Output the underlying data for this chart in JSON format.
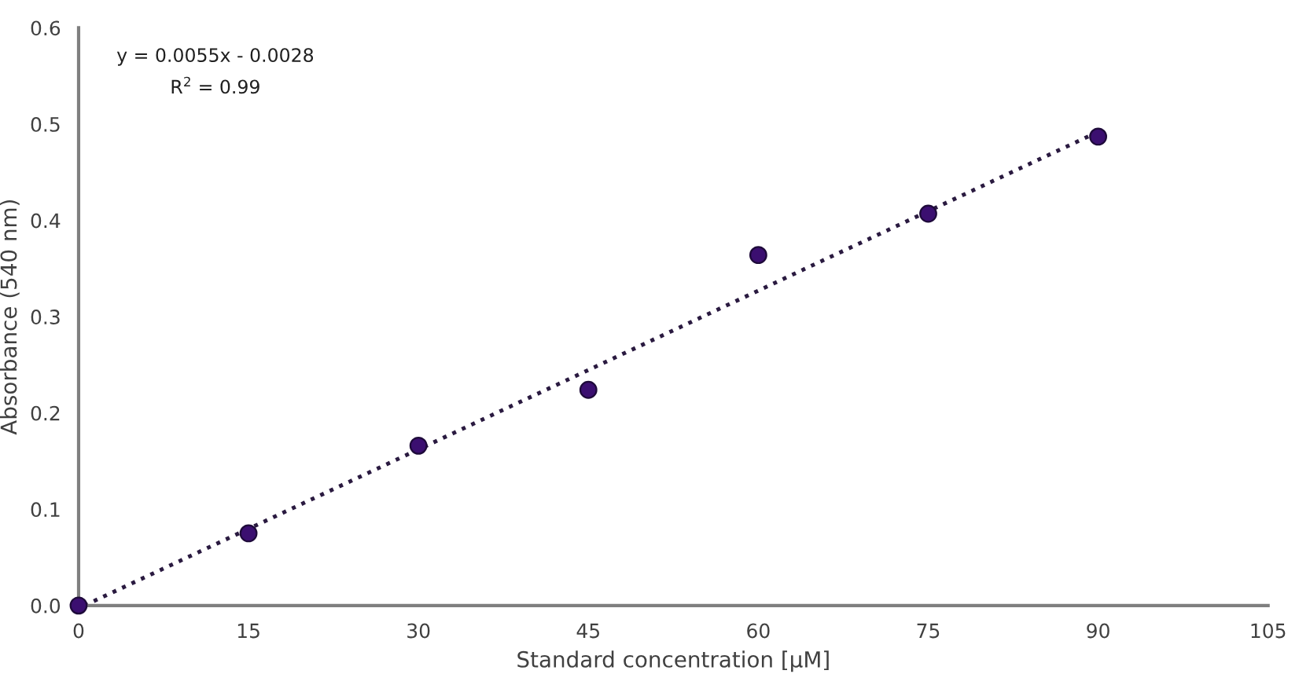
{
  "chart_data": {
    "type": "scatter",
    "xlabel": "Standard concentration [µM]",
    "ylabel": "Absorbance (540 nm)",
    "annotations": [
      "y = 0.0055x - 0.0028",
      "R$^{2}$ = 0.99"
    ],
    "series": [
      {
        "color": "#3b0f70",
        "marker": "circle",
        "x": [
          0,
          15,
          30,
          45,
          60,
          75,
          90
        ],
        "values": [
          0,
          0.075,
          0.166,
          0.224,
          0.364,
          0.407,
          0.487
        ]
      },
      {
        "type": "line",
        "color": "#2a1a40",
        "line_style": "dotted",
        "x": [
          0.51,
          90
        ],
        "values": [
          0,
          0.492
        ]
      }
    ],
    "xlim": [
      0,
      105
    ],
    "xticks": [
      0,
      15,
      30,
      45,
      60,
      75,
      90,
      105
    ],
    "ylim": [
      0,
      0.6
    ],
    "yticks": [
      {
        "value": 0,
        "label": "0.0"
      },
      0.1,
      0.2,
      0.3,
      0.4,
      0.5,
      0.6
    ],
    "grid": false,
    "legend": false
  }
}
